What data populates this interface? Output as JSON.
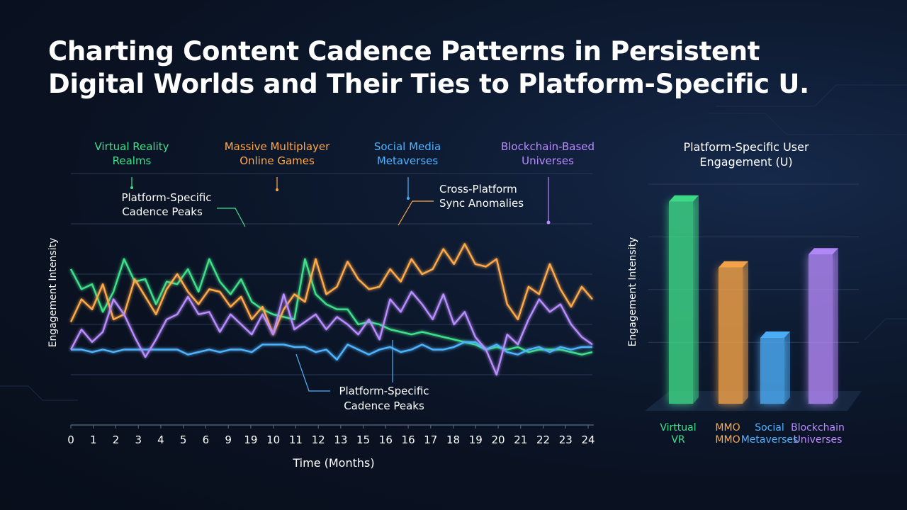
{
  "title_line1": "Charting Content Cadence Patterns in Persistent",
  "title_line2": "Digital Worlds and Their Ties to Platform-Specific U.",
  "colors": {
    "green": "#3fe08a",
    "orange": "#ffa94a",
    "blue": "#4fb3ff",
    "purple": "#b98cff",
    "grid": "#2a3956"
  },
  "chart_data": [
    {
      "type": "line",
      "title": "",
      "xlabel": "Time (Months)",
      "ylabel": "Engagement Intensity",
      "x_tick_labels": [
        "0",
        "1",
        "2",
        "3",
        "4",
        "5",
        "6",
        "9",
        "19",
        "10",
        "11",
        "12",
        "13",
        "15",
        "16",
        "16",
        "17",
        "18",
        "19",
        "20",
        "21",
        "22",
        "23",
        "24"
      ],
      "ylim": [
        0,
        100
      ],
      "grid": true,
      "series_labels": [
        {
          "text": [
            "Virtual Reality",
            "Realms"
          ],
          "color": "green"
        },
        {
          "text": [
            "Massive Multiplayer",
            "Online Games"
          ],
          "color": "orange"
        },
        {
          "text": [
            "Social Media",
            "Metaverses"
          ],
          "color": "blue"
        },
        {
          "text": [
            "Blockchain-Based",
            "Universes"
          ],
          "color": "purple"
        }
      ],
      "annotations": [
        {
          "text": [
            "Platform-Specific",
            "Cadence Peaks"
          ]
        },
        {
          "text": [
            "Cross-Platform",
            "Sync Anomalies"
          ]
        },
        {
          "text": [
            "Platform-Specific",
            "Cadence Peaks"
          ]
        }
      ],
      "series": [
        {
          "color": "green",
          "values": [
            62,
            54,
            56,
            45,
            53,
            66,
            57,
            58,
            48,
            57,
            56,
            62,
            53,
            66,
            57,
            52,
            58,
            49,
            46,
            44,
            43,
            42,
            66,
            52,
            48,
            46,
            46,
            40,
            41,
            40,
            38,
            37,
            36,
            37,
            36,
            35,
            34,
            33,
            32,
            30,
            31,
            30,
            31,
            29,
            30,
            30,
            30,
            29,
            28,
            29
          ]
        },
        {
          "color": "orange",
          "values": [
            41,
            50,
            46,
            56,
            42,
            44,
            58,
            51,
            44,
            54,
            60,
            53,
            48,
            54,
            53,
            47,
            51,
            42,
            47,
            36,
            46,
            52,
            49,
            66,
            52,
            55,
            65,
            58,
            54,
            55,
            62,
            57,
            66,
            60,
            62,
            70,
            64,
            72,
            64,
            63,
            66,
            48,
            42,
            55,
            52,
            64,
            54,
            47,
            55,
            50
          ]
        },
        {
          "color": "blue",
          "values": [
            30,
            30,
            29,
            30,
            29,
            30,
            30,
            30,
            30,
            30,
            30,
            28,
            29,
            30,
            29,
            30,
            30,
            29,
            32,
            32,
            32,
            31,
            31,
            29,
            30,
            26,
            32,
            30,
            28,
            30,
            31,
            29,
            30,
            32,
            30,
            30,
            31,
            33,
            33,
            30,
            32,
            29,
            28,
            30,
            31,
            29,
            31,
            30,
            31,
            31
          ]
        },
        {
          "color": "purple",
          "values": [
            30,
            38,
            33,
            37,
            50,
            44,
            35,
            27,
            34,
            42,
            44,
            51,
            44,
            45,
            37,
            44,
            40,
            36,
            44,
            36,
            52,
            38,
            41,
            44,
            38,
            43,
            40,
            36,
            42,
            34,
            50,
            45,
            53,
            48,
            42,
            52,
            40,
            45,
            35,
            30,
            20,
            36,
            32,
            42,
            50,
            45,
            48,
            40,
            35,
            32
          ]
        }
      ]
    },
    {
      "type": "bar",
      "title": [
        "Platform-Specific User",
        "Engagement (U)"
      ],
      "ylabel": "Engagement Intensity",
      "categories": [
        {
          "line1": "Virttual",
          "line2": "VR",
          "color": "green"
        },
        {
          "line1": "MMO",
          "line2": "MMO",
          "color": "orange"
        },
        {
          "line1": "Social",
          "line2": "Metaverses",
          "color": "blue"
        },
        {
          "line1": "Blockchain",
          "line2": "Universes",
          "color": "purple"
        }
      ],
      "values": [
        92,
        62,
        30,
        68
      ],
      "ylim": [
        0,
        100
      ]
    }
  ]
}
